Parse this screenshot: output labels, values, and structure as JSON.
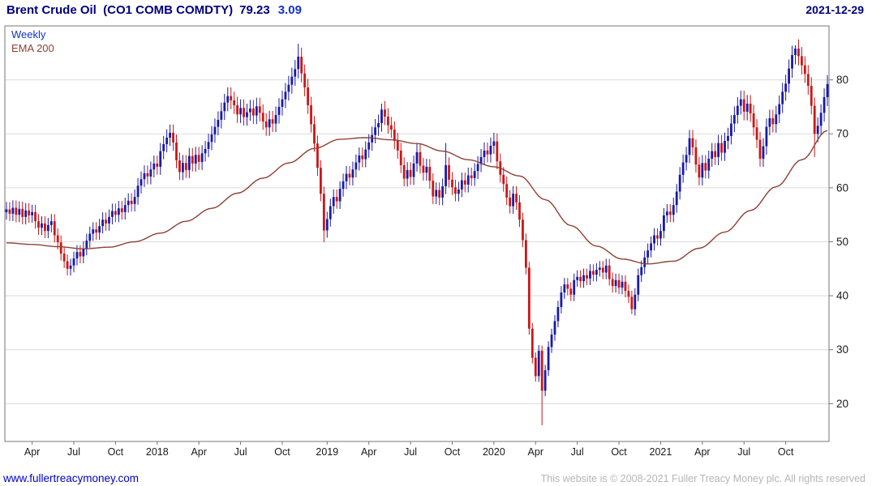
{
  "header": {
    "title": "Brent Crude Oil  (CO1 COMB COMDTY)",
    "last_price": "79.23",
    "change": "3.09",
    "date": "2021-12-29"
  },
  "legend": {
    "frequency": "Weekly",
    "ema": "EMA 200"
  },
  "footer": {
    "link": "www.fullertreacymoney.com",
    "copyright": "This website is © 2008-2021 Fuller Treacy Money plc. All rights reserved"
  },
  "colors": {
    "title": "#00007d",
    "change": "#1133cc",
    "up": "#1a1aa6",
    "down": "#cc1616",
    "ema": "#8f3f35",
    "grid": "#dcdcdc",
    "border": "#777777",
    "axis_text": "#1a1a1a",
    "link": "#0000c8",
    "muted": "#b5b5b5"
  },
  "chart_data": {
    "type": "candlestick",
    "title": "Brent Crude Oil (CO1 COMB COMDTY)",
    "frequency": "Weekly",
    "overlay": "EMA 200",
    "last_price": 79.23,
    "change": 3.09,
    "as_of": "2021-12-29",
    "grid": "horizontal",
    "legend_position": "top-left",
    "y_ticks": [
      20,
      30,
      40,
      50,
      60,
      70,
      80
    ],
    "y_domain": [
      13,
      90
    ],
    "x_labels": [
      {
        "label": "Apr",
        "week": 8
      },
      {
        "label": "Jul",
        "week": 21
      },
      {
        "label": "Oct",
        "week": 34
      },
      {
        "label": "2018",
        "week": 47
      },
      {
        "label": "Apr",
        "week": 60
      },
      {
        "label": "Jul",
        "week": 73
      },
      {
        "label": "Oct",
        "week": 86
      },
      {
        "label": "2019",
        "week": 100
      },
      {
        "label": "Apr",
        "week": 113
      },
      {
        "label": "Jul",
        "week": 126
      },
      {
        "label": "Oct",
        "week": 139
      },
      {
        "label": "2020",
        "week": 152
      },
      {
        "label": "Apr",
        "week": 165
      },
      {
        "label": "Jul",
        "week": 178
      },
      {
        "label": "Oct",
        "week": 191
      },
      {
        "label": "2021",
        "week": 204
      },
      {
        "label": "Apr",
        "week": 217
      },
      {
        "label": "Jul",
        "week": 230
      },
      {
        "label": "Oct",
        "week": 243
      }
    ],
    "first_open": 55.5,
    "weekly_closes": [
      56.0,
      55.2,
      56.3,
      55.0,
      56.1,
      54.6,
      55.8,
      54.9,
      55.5,
      53.8,
      52.6,
      53.4,
      52.0,
      53.1,
      53.8,
      51.2,
      49.9,
      47.8,
      46.4,
      45.0,
      45.6,
      46.9,
      48.1,
      47.3,
      48.8,
      50.2,
      51.5,
      52.3,
      51.7,
      52.9,
      54.1,
      53.4,
      54.6,
      55.7,
      55.0,
      56.2,
      55.5,
      56.8,
      57.6,
      57.0,
      58.3,
      60.4,
      61.6,
      62.7,
      62.1,
      63.4,
      64.5,
      63.9,
      66.8,
      68.1,
      69.3,
      70.2,
      68.4,
      65.1,
      62.9,
      64.6,
      63.3,
      65.9,
      64.5,
      66.1,
      64.8,
      66.4,
      67.2,
      68.5,
      69.9,
      71.3,
      72.6,
      74.2,
      75.8,
      77.0,
      76.2,
      75.3,
      73.6,
      74.8,
      73.1,
      74.0,
      74.7,
      73.4,
      75.1,
      73.9,
      72.3,
      71.2,
      72.7,
      71.9,
      73.5,
      75.0,
      76.4,
      77.8,
      79.1,
      80.6,
      82.0,
      84.3,
      81.2,
      78.6,
      75.3,
      71.8,
      68.2,
      63.7,
      58.9,
      52.1,
      54.2,
      56.6,
      58.3,
      57.5,
      59.8,
      61.2,
      62.6,
      61.9,
      63.4,
      64.7,
      66.0,
      65.3,
      67.1,
      68.4,
      69.8,
      71.2,
      72.0,
      74.5,
      73.2,
      71.6,
      70.8,
      68.7,
      66.9,
      64.2,
      61.7,
      63.3,
      62.0,
      64.5,
      66.6,
      64.1,
      62.8,
      63.9,
      61.3,
      58.4,
      59.6,
      58.2,
      60.3,
      64.2,
      61.5,
      60.1,
      58.9,
      59.7,
      61.4,
      60.6,
      62.3,
      61.8,
      63.1,
      64.4,
      65.7,
      66.9,
      66.2,
      67.8,
      68.6,
      64.9,
      62.4,
      60.7,
      58.2,
      56.6,
      58.9,
      57.3,
      54.1,
      50.3,
      45.2,
      33.9,
      28.5,
      25.1,
      29.8,
      22.4,
      26.2,
      30.5,
      32.8,
      35.3,
      37.9,
      40.6,
      42.1,
      41.3,
      40.2,
      42.9,
      43.5,
      42.7,
      43.8,
      43.2,
      44.6,
      43.9,
      44.8,
      45.2,
      44.3,
      45.6,
      43.1,
      41.8,
      42.9,
      41.5,
      42.6,
      40.9,
      39.8,
      37.5,
      40.2,
      43.8,
      45.3,
      47.1,
      48.4,
      49.7,
      51.2,
      50.6,
      52.0,
      54.9,
      55.6,
      55.0,
      56.8,
      59.3,
      62.4,
      64.7,
      66.1,
      69.2,
      67.5,
      64.3,
      61.9,
      64.6,
      63.2,
      65.4,
      66.8,
      65.7,
      68.3,
      66.5,
      68.7,
      69.6,
      71.9,
      73.5,
      75.2,
      76.4,
      74.1,
      75.6,
      73.8,
      71.2,
      68.9,
      65.4,
      67.7,
      71.3,
      72.9,
      71.8,
      73.6,
      75.5,
      77.8,
      79.3,
      82.1,
      84.6,
      85.8,
      84.4,
      82.7,
      81.1,
      78.9,
      75.2,
      70.0,
      71.5,
      73.9,
      76.8,
      79.23
    ],
    "wick_overrides": {
      "91": {
        "high": 86.7
      },
      "99": {
        "low": 49.9
      },
      "117": {
        "high": 75.6
      },
      "137": {
        "high": 68.3
      },
      "152": {
        "high": 70.2
      },
      "167": {
        "low": 16.0
      },
      "195": {
        "low": 36.6
      },
      "246": {
        "high": 86.4
      },
      "252": {
        "low": 65.7
      }
    },
    "ema_anchor_step": 8,
    "ema_anchors": [
      49.8,
      49.5,
      49.1,
      48.7,
      49.0,
      50.0,
      51.6,
      53.8,
      56.2,
      59.0,
      61.8,
      64.6,
      67.3,
      69.0,
      69.3,
      68.9,
      68.2,
      66.8,
      65.2,
      63.9,
      62.2,
      57.8,
      53.0,
      49.2,
      46.8,
      45.9,
      46.4,
      48.8,
      51.8,
      55.8,
      60.2,
      65.2,
      70.6
    ]
  }
}
